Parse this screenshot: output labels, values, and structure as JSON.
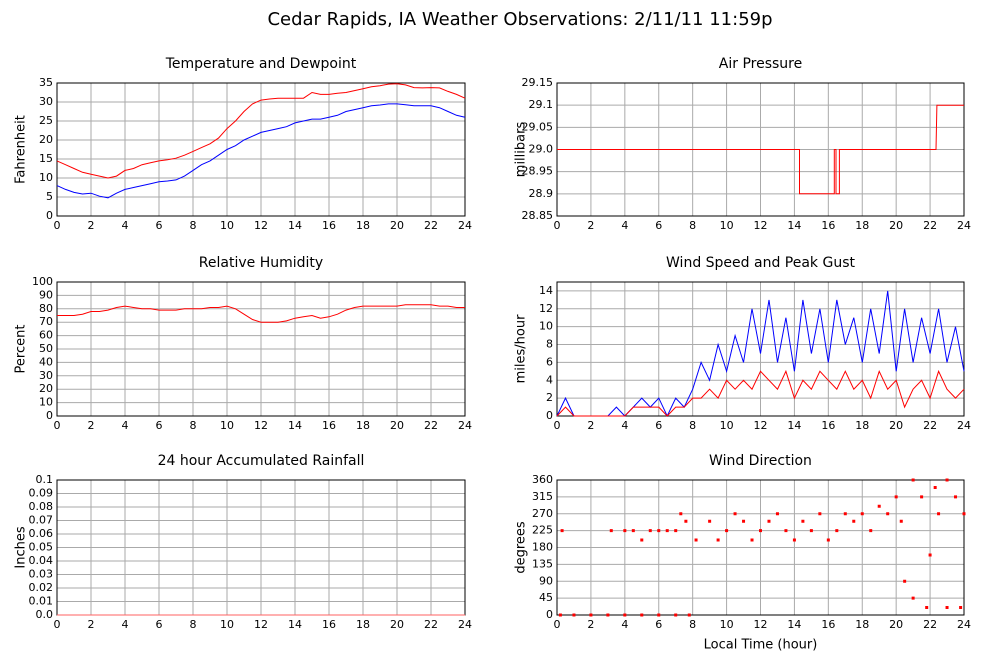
{
  "title": "Cedar Rapids, IA Weather Observations: 2/11/11 11:59p",
  "chart_data": [
    {
      "type": "line",
      "title": "Temperature and Dewpoint",
      "y_label": "Fahrenheit",
      "x": [
        0,
        0.5,
        1,
        1.5,
        2,
        2.5,
        3,
        3.5,
        4,
        4.5,
        5,
        5.5,
        6,
        6.5,
        7,
        7.5,
        8,
        8.5,
        9,
        9.5,
        10,
        10.5,
        11,
        11.5,
        12,
        12.5,
        13,
        13.5,
        14,
        14.5,
        15,
        15.5,
        16,
        16.5,
        17,
        17.5,
        18,
        18.5,
        19,
        19.5,
        20,
        20.5,
        21,
        21.5,
        22,
        22.5,
        23,
        23.5,
        24
      ],
      "series": [
        {
          "color": "#ff0000",
          "values": [
            14.5,
            13.5,
            12.5,
            11.5,
            11,
            10.5,
            10,
            10.5,
            12,
            12.5,
            13.5,
            14,
            14.5,
            14.8,
            15.2,
            16,
            17,
            18,
            19,
            20.5,
            23,
            25,
            27.5,
            29.5,
            30.5,
            30.8,
            31,
            31,
            31,
            31,
            32.5,
            32,
            32,
            32.3,
            32.5,
            33,
            33.5,
            34,
            34.3,
            34.7,
            34.8,
            34.5,
            33.8,
            33.7,
            33.8,
            33.7,
            32.8,
            32,
            31
          ]
        },
        {
          "color": "#0000ff",
          "values": [
            8,
            7,
            6.2,
            5.8,
            6,
            5.2,
            4.8,
            6,
            7,
            7.5,
            8,
            8.5,
            9,
            9.2,
            9.5,
            10.5,
            12,
            13.5,
            14.5,
            16,
            17.5,
            18.5,
            20,
            21,
            22,
            22.5,
            23,
            23.5,
            24.5,
            25,
            25.5,
            25.5,
            26,
            26.5,
            27.5,
            28,
            28.5,
            29,
            29.2,
            29.5,
            29.5,
            29.3,
            29,
            29,
            29,
            28.5,
            27.5,
            26.5,
            26
          ]
        }
      ],
      "xlim": [
        0,
        24
      ],
      "xticks": [
        0,
        2,
        4,
        6,
        8,
        10,
        12,
        14,
        16,
        18,
        20,
        22,
        24
      ],
      "ylim": [
        0,
        35
      ],
      "yticks": [
        0,
        5,
        10,
        15,
        20,
        25,
        30,
        35
      ],
      "grid": true
    },
    {
      "type": "line",
      "title": "Air Pressure",
      "y_label": "millibars",
      "x": [
        0,
        14.3,
        14.3,
        16.35,
        16.35,
        16.45,
        16.45,
        16.65,
        16.65,
        22.35,
        22.4,
        24
      ],
      "series": [
        {
          "color": "#ff0000",
          "values": [
            29,
            29,
            28.9,
            28.9,
            29,
            29,
            28.9,
            28.9,
            29,
            29,
            29.1,
            29.1
          ]
        }
      ],
      "xlim": [
        0,
        24
      ],
      "xticks": [
        0,
        2,
        4,
        6,
        8,
        10,
        12,
        14,
        16,
        18,
        20,
        22,
        24
      ],
      "ylim": [
        28.85,
        29.15
      ],
      "yticks": [
        28.85,
        28.9,
        28.95,
        {
          "value": 29,
          "label": "29.0"
        },
        29.05,
        29.1,
        29.15
      ],
      "grid": true
    },
    {
      "type": "line",
      "title": "Relative Humidity",
      "y_label": "Percent",
      "x": [
        0,
        0.5,
        1,
        1.5,
        2,
        2.5,
        3,
        3.5,
        4,
        4.5,
        5,
        5.5,
        6,
        6.5,
        7,
        7.5,
        8,
        8.5,
        9,
        9.5,
        10,
        10.5,
        11,
        11.5,
        12,
        12.5,
        13,
        13.5,
        14,
        14.5,
        15,
        15.5,
        16,
        16.5,
        17,
        17.5,
        18,
        18.5,
        19,
        19.5,
        20,
        20.5,
        21,
        21.5,
        22,
        22.5,
        23,
        23.5,
        24
      ],
      "series": [
        {
          "color": "#ff0000",
          "values": [
            75,
            75,
            75,
            76,
            78,
            78,
            79,
            81,
            82,
            81,
            80,
            80,
            79,
            79,
            79,
            80,
            80,
            80,
            81,
            81,
            82,
            80,
            76,
            72,
            70,
            70,
            70,
            71,
            73,
            74,
            75,
            73,
            74,
            76,
            79,
            81,
            82,
            82,
            82,
            82,
            82,
            83,
            83,
            83,
            83,
            82,
            82,
            81,
            81
          ]
        }
      ],
      "xlim": [
        0,
        24
      ],
      "xticks": [
        0,
        2,
        4,
        6,
        8,
        10,
        12,
        14,
        16,
        18,
        20,
        22,
        24
      ],
      "ylim": [
        0,
        100
      ],
      "yticks": [
        0,
        10,
        20,
        30,
        40,
        50,
        60,
        70,
        80,
        90,
        100
      ],
      "grid": true
    },
    {
      "type": "line",
      "title": "Wind Speed and Peak Gust",
      "y_label": "miles/hour",
      "x": [
        0,
        0.5,
        1,
        1.5,
        2,
        2.5,
        3,
        3.5,
        4,
        4.5,
        5,
        5.5,
        6,
        6.5,
        7,
        7.5,
        8,
        8.5,
        9,
        9.5,
        10,
        10.5,
        11,
        11.5,
        12,
        12.5,
        13,
        13.5,
        14,
        14.5,
        15,
        15.5,
        16,
        16.5,
        17,
        17.5,
        18,
        18.5,
        19,
        19.5,
        20,
        20.5,
        21,
        21.5,
        22,
        22.5,
        23,
        23.5,
        24
      ],
      "series": [
        {
          "color": "#0000ff",
          "values": [
            0,
            2,
            0,
            0,
            0,
            0,
            0,
            1,
            0,
            1,
            2,
            1,
            2,
            0,
            2,
            1,
            3,
            6,
            4,
            8,
            5,
            9,
            6,
            12,
            7,
            13,
            6,
            11,
            5,
            13,
            7,
            12,
            6,
            13,
            8,
            11,
            6,
            12,
            7,
            14,
            5,
            12,
            6,
            11,
            7,
            12,
            6,
            10,
            5
          ]
        },
        {
          "color": "#ff0000",
          "values": [
            0,
            1,
            0,
            0,
            0,
            0,
            0,
            0,
            0,
            1,
            1,
            1,
            1,
            0,
            1,
            1,
            2,
            2,
            3,
            2,
            4,
            3,
            4,
            3,
            5,
            4,
            3,
            5,
            2,
            4,
            3,
            5,
            4,
            3,
            5,
            3,
            4,
            2,
            5,
            3,
            4,
            1,
            3,
            4,
            2,
            5,
            3,
            2,
            3
          ]
        }
      ],
      "xlim": [
        0,
        24
      ],
      "xticks": [
        0,
        2,
        4,
        6,
        8,
        10,
        12,
        14,
        16,
        18,
        20,
        22,
        24
      ],
      "ylim": [
        0,
        15
      ],
      "yticks": [
        0,
        2,
        4,
        6,
        8,
        10,
        12,
        14
      ],
      "grid": true
    },
    {
      "type": "line",
      "title": "24 hour Accumulated Rainfall",
      "y_label": "Inches",
      "x": [
        0,
        24
      ],
      "series": [
        {
          "color": "#ff6060",
          "values": [
            0,
            0
          ]
        }
      ],
      "xlim": [
        0,
        24
      ],
      "xticks": [
        0,
        2,
        4,
        6,
        8,
        10,
        12,
        14,
        16,
        18,
        20,
        22,
        24
      ],
      "ylim": [
        0,
        0.1
      ],
      "yticks": [
        {
          "value": 0,
          "label": "0.0"
        },
        0.01,
        0.02,
        0.03,
        0.04,
        0.05,
        0.06,
        0.07,
        0.08,
        0.09,
        0.1
      ],
      "grid": true
    },
    {
      "type": "scatter",
      "title": "Wind Direction",
      "y_label": "degrees",
      "x_label": "Local Time (hour)",
      "x": [
        0.2,
        1,
        2,
        3,
        4,
        5,
        6,
        7,
        7.8,
        0.3,
        3.2,
        4,
        4.5,
        5,
        5.5,
        6,
        6.5,
        7,
        7.3,
        7.6,
        8.2,
        9,
        9.5,
        10,
        10.5,
        11,
        11.5,
        12,
        12.5,
        13,
        13.5,
        14,
        14.5,
        15,
        15.5,
        16,
        16.5,
        17,
        17.5,
        18,
        18.5,
        19,
        19.5,
        20,
        20.3,
        20.5,
        21,
        21,
        21.5,
        21.8,
        22,
        22.3,
        22.5,
        23,
        23,
        23.5,
        23.8,
        24
      ],
      "series": [
        {
          "color": "#ff0000",
          "values": [
            0,
            0,
            0,
            0,
            0,
            0,
            0,
            0,
            0,
            225,
            225,
            225,
            225,
            200,
            225,
            225,
            225,
            225,
            270,
            250,
            200,
            250,
            200,
            225,
            270,
            250,
            200,
            225,
            250,
            270,
            225,
            200,
            250,
            225,
            270,
            200,
            225,
            270,
            250,
            270,
            225,
            290,
            270,
            315,
            250,
            90,
            360,
            45,
            315,
            20,
            160,
            340,
            270,
            20,
            360,
            315,
            20,
            270
          ]
        }
      ],
      "xlim": [
        0,
        24
      ],
      "xticks": [
        0,
        2,
        4,
        6,
        8,
        10,
        12,
        14,
        16,
        18,
        20,
        22,
        24
      ],
      "ylim": [
        0,
        360
      ],
      "yticks": [
        0,
        45,
        90,
        135,
        180,
        225,
        270,
        315,
        360
      ],
      "grid": true
    }
  ]
}
